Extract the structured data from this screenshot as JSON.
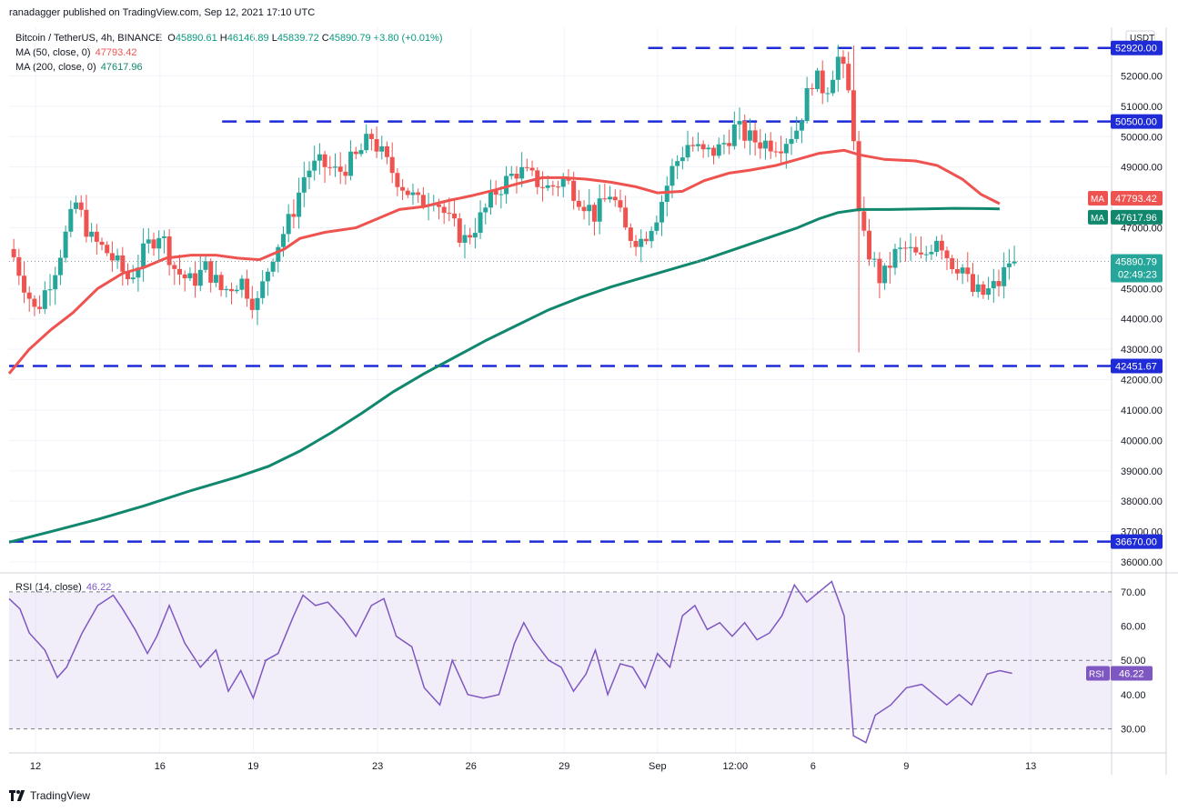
{
  "header": {
    "published": "ranadagger published on TradingView.com, Sep 12, 2021 17:10 UTC"
  },
  "legend": {
    "symbol": "Bitcoin / TetherUS, 4h, BINANCE",
    "open_label": "O",
    "open": "45890.61",
    "high_label": "H",
    "high": "46146.89",
    "low_label": "L",
    "low": "45839.72",
    "close_label": "C",
    "close": "45890.79",
    "change": "+3.80 (+0.01%)",
    "ma50_label": "MA (50, close, 0)",
    "ma50_value": "47793.42",
    "ma200_label": "MA (200, close, 0)",
    "ma200_value": "47617.96",
    "rsi_label": "RSI (14, close)",
    "rsi_value": "46.22"
  },
  "footer": {
    "brand": "TradingView"
  },
  "colors": {
    "up": "#26a69a",
    "down": "#ef5350",
    "ma50": "#ef5350",
    "ma200": "#11876d",
    "rsi": "#7e57c2",
    "hline": "#1e2bd6",
    "grid": "#f0f3fa",
    "axis_text": "#131722"
  },
  "chart_data": [
    {
      "type": "candlestick",
      "title": "Bitcoin / TetherUS, 4h, BINANCE",
      "currency_label": "USDT",
      "ylim": [
        35700,
        53600
      ],
      "y_ticks": [
        36000,
        37000,
        38000,
        39000,
        40000,
        41000,
        42000,
        43000,
        44000,
        45000,
        46000,
        47000,
        48000,
        49000,
        50000,
        51000,
        52000
      ],
      "y_tick_labels": [
        "36000.00",
        "37000.00",
        "38000.00",
        "39000.00",
        "40000.00",
        "41000.00",
        "42000.00",
        "43000.00",
        "44000.00",
        "45000.00",
        "46000.00",
        "47000.00",
        "48000.00",
        "49000.00",
        "50000.00",
        "51000.00",
        "52000.00"
      ],
      "x_ticks": [
        "12",
        "16",
        "19",
        "23",
        "26",
        "29",
        "Sep",
        "12:00",
        "6",
        "9",
        "13"
      ],
      "x_tick_pos": [
        1.0,
        5.0,
        8.0,
        12.0,
        15.0,
        18.0,
        21.0,
        23.5,
        26.0,
        29.0,
        33.0
      ],
      "x_range": [
        0.15,
        35.6
      ],
      "horizontal_levels": [
        {
          "value": 52920.0,
          "label": "52920.00",
          "from": 20.7
        },
        {
          "value": 50500.0,
          "label": "50500.00",
          "from": 7.0
        },
        {
          "value": 42451.67,
          "label": "42451.67",
          "from": 0.15
        },
        {
          "value": 36670.0,
          "label": "36670.00",
          "from": 0.15
        }
      ],
      "price_badge": {
        "value": 45890.79,
        "label": "45890.79",
        "countdown": "02:49:23"
      },
      "ma_badges": [
        {
          "name": "MA",
          "value": 47793.42,
          "label": "47793.42"
        },
        {
          "name": "MA",
          "value": 47617.96,
          "label": "47617.96"
        }
      ],
      "series": [
        {
          "name": "MA (50, close, 0)",
          "points": [
            [
              0.15,
              42200
            ],
            [
              0.8,
              43000
            ],
            [
              1.5,
              43650
            ],
            [
              2.2,
              44200
            ],
            [
              3.0,
              45000
            ],
            [
              3.8,
              45500
            ],
            [
              4.5,
              45700
            ],
            [
              5.2,
              46000
            ],
            [
              6.0,
              46100
            ],
            [
              6.8,
              46100
            ],
            [
              7.5,
              46000
            ],
            [
              8.2,
              45950
            ],
            [
              9.0,
              46300
            ],
            [
              9.5,
              46650
            ],
            [
              10.3,
              46850
            ],
            [
              11.3,
              47000
            ],
            [
              12.0,
              47300
            ],
            [
              12.7,
              47600
            ],
            [
              13.5,
              47700
            ],
            [
              14.3,
              47900
            ],
            [
              15.0,
              48050
            ],
            [
              15.8,
              48250
            ],
            [
              16.5,
              48450
            ],
            [
              17.3,
              48650
            ],
            [
              18.0,
              48650
            ],
            [
              18.7,
              48600
            ],
            [
              19.5,
              48500
            ],
            [
              20.3,
              48350
            ],
            [
              21.0,
              48150
            ],
            [
              21.8,
              48200
            ],
            [
              22.5,
              48550
            ],
            [
              23.3,
              48800
            ],
            [
              24.0,
              48900
            ],
            [
              24.8,
              49050
            ],
            [
              25.5,
              49250
            ],
            [
              26.2,
              49450
            ],
            [
              27.0,
              49550
            ],
            [
              27.5,
              49400
            ],
            [
              28.3,
              49250
            ],
            [
              29.3,
              49200
            ],
            [
              30.0,
              49050
            ],
            [
              30.8,
              48600
            ],
            [
              31.4,
              48100
            ],
            [
              32.0,
              47793
            ]
          ]
        },
        {
          "name": "MA (200, close, 0)",
          "points": [
            [
              0.15,
              36650
            ],
            [
              1.5,
              37000
            ],
            [
              3.0,
              37400
            ],
            [
              4.5,
              37850
            ],
            [
              6.0,
              38350
            ],
            [
              7.5,
              38800
            ],
            [
              8.5,
              39150
            ],
            [
              9.5,
              39650
            ],
            [
              10.5,
              40250
            ],
            [
              11.5,
              40900
            ],
            [
              12.5,
              41600
            ],
            [
              13.5,
              42200
            ],
            [
              14.5,
              42750
            ],
            [
              15.5,
              43300
            ],
            [
              16.5,
              43800
            ],
            [
              17.5,
              44300
            ],
            [
              18.5,
              44700
            ],
            [
              19.5,
              45050
            ],
            [
              20.5,
              45350
            ],
            [
              21.5,
              45650
            ],
            [
              22.5,
              45950
            ],
            [
              23.5,
              46300
            ],
            [
              24.5,
              46650
            ],
            [
              25.5,
              47000
            ],
            [
              26.2,
              47300
            ],
            [
              26.8,
              47500
            ],
            [
              27.5,
              47600
            ],
            [
              28.5,
              47600
            ],
            [
              29.5,
              47620
            ],
            [
              30.5,
              47640
            ],
            [
              31.5,
              47630
            ],
            [
              32.0,
              47618
            ]
          ]
        }
      ]
    },
    {
      "type": "line",
      "title": "RSI (14, close)",
      "ylim": [
        23,
        75
      ],
      "y_ticks": [
        30,
        40,
        50,
        60,
        70
      ],
      "y_tick_labels": [
        "30.00",
        "40.00",
        "50.00",
        "60.00",
        "70.00"
      ],
      "band": [
        30,
        70
      ],
      "mid": 50,
      "rsi_badge": {
        "name": "RSI",
        "value": 46.22,
        "label": "46.22"
      },
      "series": [
        {
          "name": "RSI (14, close)",
          "points": [
            [
              0.15,
              68
            ],
            [
              0.5,
              65
            ],
            [
              0.8,
              58
            ],
            [
              1.3,
              53
            ],
            [
              1.7,
              45
            ],
            [
              2.0,
              48
            ],
            [
              2.5,
              58
            ],
            [
              3.0,
              66
            ],
            [
              3.5,
              69
            ],
            [
              3.8,
              65
            ],
            [
              4.2,
              59
            ],
            [
              4.6,
              52
            ],
            [
              4.9,
              57
            ],
            [
              5.3,
              66
            ],
            [
              5.8,
              55
            ],
            [
              6.3,
              48
            ],
            [
              6.8,
              53
            ],
            [
              7.2,
              41
            ],
            [
              7.6,
              47
            ],
            [
              8.0,
              39
            ],
            [
              8.4,
              50
            ],
            [
              8.8,
              52
            ],
            [
              9.3,
              63
            ],
            [
              9.6,
              69
            ],
            [
              10.0,
              66
            ],
            [
              10.4,
              67
            ],
            [
              10.9,
              62
            ],
            [
              11.3,
              57
            ],
            [
              11.8,
              66
            ],
            [
              12.2,
              68
            ],
            [
              12.6,
              57
            ],
            [
              13.1,
              54
            ],
            [
              13.5,
              42
            ],
            [
              14.0,
              37
            ],
            [
              14.4,
              50
            ],
            [
              14.9,
              40
            ],
            [
              15.4,
              39
            ],
            [
              15.9,
              40
            ],
            [
              16.4,
              55
            ],
            [
              16.7,
              61
            ],
            [
              17.0,
              56
            ],
            [
              17.5,
              50
            ],
            [
              17.9,
              48
            ],
            [
              18.3,
              41
            ],
            [
              18.7,
              46
            ],
            [
              19.0,
              53
            ],
            [
              19.4,
              40
            ],
            [
              19.8,
              49
            ],
            [
              20.2,
              48
            ],
            [
              20.6,
              42
            ],
            [
              21.0,
              52
            ],
            [
              21.4,
              48
            ],
            [
              21.8,
              63
            ],
            [
              22.2,
              66
            ],
            [
              22.6,
              59
            ],
            [
              23.0,
              61
            ],
            [
              23.4,
              57
            ],
            [
              23.8,
              61
            ],
            [
              24.2,
              56
            ],
            [
              24.6,
              58
            ],
            [
              25.0,
              63
            ],
            [
              25.4,
              72
            ],
            [
              25.8,
              67
            ],
            [
              26.2,
              70
            ],
            [
              26.6,
              73
            ],
            [
              27.0,
              63
            ],
            [
              27.3,
              28
            ],
            [
              27.7,
              26
            ],
            [
              28.0,
              34
            ],
            [
              28.5,
              37
            ],
            [
              29.0,
              42
            ],
            [
              29.5,
              43
            ],
            [
              29.9,
              40
            ],
            [
              30.3,
              37
            ],
            [
              30.7,
              40
            ],
            [
              31.1,
              37
            ],
            [
              31.6,
              46
            ],
            [
              32.0,
              47
            ],
            [
              32.4,
              46.22
            ]
          ]
        }
      ]
    }
  ]
}
